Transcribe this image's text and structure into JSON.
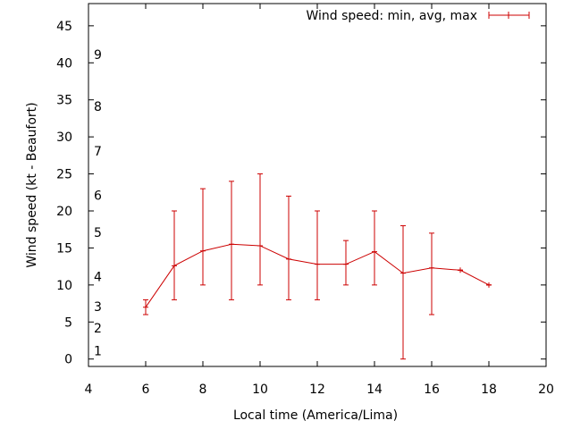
{
  "chart_data": {
    "type": "line",
    "title": "",
    "xlabel": "Local time (America/Lima)",
    "ylabel": "Wind speed (kt - Beaufort)",
    "xlim": [
      4,
      20
    ],
    "ylim": [
      -1,
      48
    ],
    "xticks": [
      4,
      6,
      8,
      10,
      12,
      14,
      16,
      18,
      20
    ],
    "yticks": [
      0,
      5,
      10,
      15,
      20,
      25,
      30,
      35,
      40,
      45
    ],
    "beaufort_labels": [
      {
        "label": "1",
        "value": 1.1
      },
      {
        "label": "2",
        "value": 4.2
      },
      {
        "label": "3",
        "value": 7.1
      },
      {
        "label": "4",
        "value": 11.1
      },
      {
        "label": "5",
        "value": 17.1
      },
      {
        "label": "6",
        "value": 22.1
      },
      {
        "label": "7",
        "value": 28.1
      },
      {
        "label": "8",
        "value": 34.1
      },
      {
        "label": "9",
        "value": 41.1
      }
    ],
    "legend": {
      "label": "Wind speed: min, avg, max",
      "position": "top-right"
    },
    "series": [
      {
        "name": "Wind speed: min, avg, max",
        "color": "#cc0000",
        "x": [
          6,
          7,
          8,
          9,
          10,
          11,
          12,
          13,
          14,
          15,
          16,
          17,
          18
        ],
        "avg": [
          7.0,
          12.6,
          14.6,
          15.5,
          15.3,
          13.5,
          12.8,
          12.8,
          14.5,
          11.6,
          12.3,
          12.0,
          10.0
        ],
        "min": [
          6.0,
          8.0,
          10.0,
          8.0,
          10.0,
          8.0,
          8.0,
          10.0,
          10.0,
          0.0,
          6.0,
          12.0,
          10.0
        ],
        "max": [
          8.0,
          20.0,
          23.0,
          24.0,
          25.0,
          22.0,
          20.0,
          16.0,
          20.0,
          18.0,
          17.0,
          12.0,
          10.0
        ]
      }
    ]
  }
}
